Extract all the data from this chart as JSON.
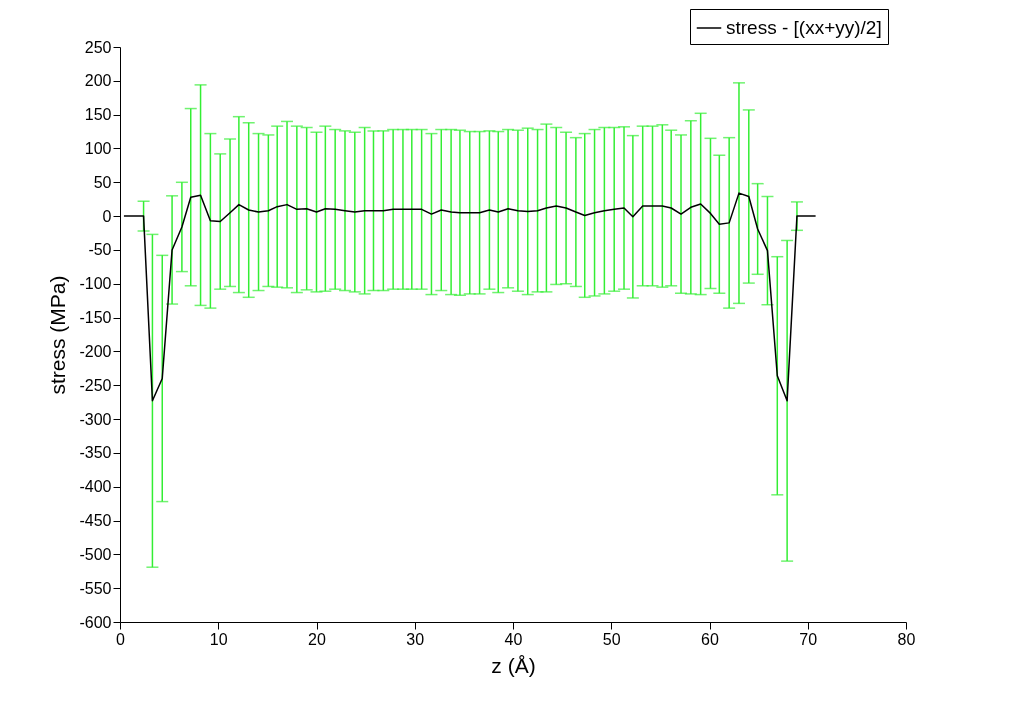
{
  "chart_data": {
    "type": "line",
    "xlabel": "z (Å)",
    "ylabel": "stress (MPa)",
    "xlim": [
      0,
      80
    ],
    "xticks": [
      0,
      10,
      20,
      30,
      40,
      50,
      60,
      70,
      80
    ],
    "ylim": [
      -600,
      250
    ],
    "yticks": [
      -600,
      -550,
      -500,
      -450,
      -400,
      -350,
      -300,
      -250,
      -200,
      -150,
      -100,
      -50,
      0,
      50,
      100,
      150,
      200,
      250
    ],
    "grid": false,
    "legend": "top right",
    "marker": "none",
    "line_style": "solid",
    "x": [
      0.4,
      1.4,
      2.4,
      3.3,
      4.3,
      5.3,
      6.3,
      7.2,
      8.2,
      9.2,
      10.2,
      11.2,
      12.1,
      13.1,
      14.1,
      15.1,
      16.0,
      17.0,
      18.0,
      19.0,
      20.0,
      20.9,
      21.9,
      22.9,
      23.9,
      24.9,
      25.8,
      26.8,
      27.8,
      28.8,
      29.7,
      30.7,
      31.7,
      32.7,
      33.7,
      34.6,
      35.6,
      36.6,
      37.6,
      38.5,
      39.5,
      40.5,
      41.5,
      42.5,
      43.4,
      44.4,
      45.4,
      46.4,
      47.3,
      48.3,
      49.3,
      50.3,
      51.3,
      52.2,
      53.2,
      54.2,
      55.2,
      56.1,
      57.1,
      58.1,
      59.1,
      60.1,
      61.0,
      62.0,
      63.0,
      64.0,
      64.9,
      65.9,
      66.9,
      67.9,
      68.9,
      69.8,
      70.8
    ],
    "series": [
      {
        "name": "stress - [(xx+yy)/2]",
        "color": "#000000",
        "values": [
          0,
          0,
          0,
          -273,
          -240,
          -50,
          -16,
          28,
          31,
          -7,
          -8,
          5,
          17,
          9,
          6,
          8,
          14,
          17,
          10,
          11,
          6,
          11,
          10,
          8,
          6,
          8,
          8,
          8,
          10,
          10,
          10,
          10,
          3,
          9,
          6,
          5,
          5,
          5,
          9,
          6,
          11,
          8,
          7,
          8,
          12,
          15,
          12,
          6,
          1,
          5,
          8,
          10,
          12,
          -1,
          15,
          15,
          15,
          12,
          3,
          13,
          18,
          4,
          -12,
          -10,
          34,
          29,
          -19,
          -51,
          -236,
          -273,
          0,
          0,
          0
        ],
        "errors": [
          null,
          null,
          22,
          246,
          182,
          80,
          66,
          131,
          163,
          129,
          100,
          109,
          130,
          129,
          116,
          112,
          119,
          123,
          123,
          120,
          118,
          122,
          118,
          118,
          118,
          123,
          118,
          118,
          118,
          118,
          118,
          118,
          119,
          119,
          122,
          122,
          120,
          120,
          117,
          119,
          117,
          119,
          123,
          120,
          124,
          116,
          112,
          110,
          121,
          123,
          123,
          121,
          120,
          120,
          118,
          118,
          120,
          115,
          117,
          128,
          134,
          111,
          102,
          126,
          163,
          128,
          67,
          80,
          176,
          237,
          21,
          null,
          null
        ]
      }
    ]
  }
}
